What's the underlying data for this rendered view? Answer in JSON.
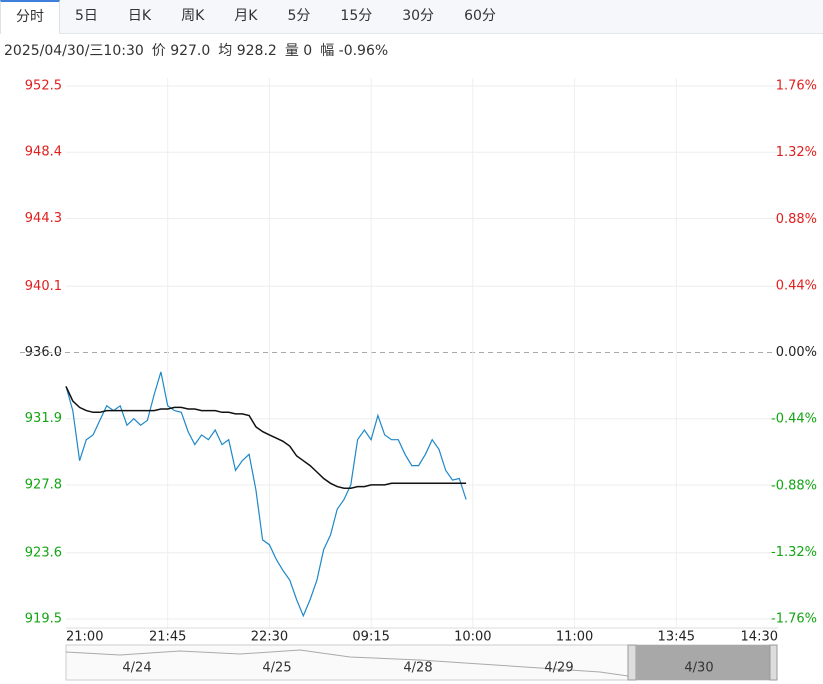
{
  "tabs": [
    "分时",
    "5日",
    "日K",
    "周K",
    "月K",
    "5分",
    "15分",
    "30分",
    "60分"
  ],
  "info": [
    "2025/04/30/三10:30",
    "价 927.0",
    "均 928.2",
    "量 0",
    "幅 -0.96%"
  ],
  "chart_data": {
    "type": "line",
    "x": [
      0,
      3,
      6,
      9,
      12,
      15,
      18,
      21,
      24,
      27,
      30,
      33,
      36,
      39,
      42,
      45,
      48,
      51,
      54,
      57,
      60,
      63,
      66,
      69,
      72,
      75,
      78,
      81,
      84,
      87,
      90,
      93,
      96,
      99,
      102,
      105,
      108,
      111,
      114,
      117,
      120,
      123,
      126,
      129,
      132,
      135,
      138,
      141,
      144,
      147,
      150,
      153,
      156,
      159,
      162,
      165,
      168,
      171,
      174,
      177
    ],
    "series": [
      {
        "name": "价",
        "color": "#1e88c8",
        "values": [
          933.9,
          932.4,
          929.3,
          930.6,
          930.9,
          931.8,
          932.7,
          932.4,
          932.7,
          931.5,
          931.9,
          931.5,
          931.8,
          933.4,
          934.8,
          932.7,
          932.4,
          932.3,
          931.1,
          930.3,
          930.9,
          930.6,
          931.2,
          930.3,
          930.6,
          928.7,
          929.3,
          929.7,
          927.5,
          924.4,
          924.1,
          923.2,
          922.5,
          921.9,
          920.7,
          919.7,
          920.7,
          921.9,
          923.8,
          924.7,
          926.3,
          926.9,
          927.8,
          930.6,
          931.2,
          930.6,
          932.1,
          930.9,
          930.6,
          930.6,
          929.7,
          929.0,
          929.0,
          929.7,
          930.6,
          930.0,
          928.7,
          928.1,
          928.2,
          926.9
        ]
      },
      {
        "name": "均",
        "color": "#111111",
        "values": [
          933.9,
          933.0,
          932.6,
          932.4,
          932.3,
          932.3,
          932.4,
          932.4,
          932.4,
          932.4,
          932.4,
          932.4,
          932.4,
          932.4,
          932.5,
          932.5,
          932.6,
          932.6,
          932.5,
          932.5,
          932.4,
          932.4,
          932.4,
          932.3,
          932.3,
          932.2,
          932.2,
          932.1,
          931.4,
          931.1,
          930.9,
          930.7,
          930.5,
          930.2,
          929.6,
          929.3,
          929.0,
          928.6,
          928.2,
          927.9,
          927.7,
          927.6,
          927.6,
          927.7,
          927.7,
          927.8,
          927.8,
          927.8,
          927.9,
          927.9,
          927.9,
          927.9,
          927.9,
          927.9,
          927.9,
          927.9,
          927.9,
          927.9,
          927.9,
          927.9
        ]
      }
    ],
    "xlim": [
      0,
      315
    ],
    "xticks": [
      {
        "value": 0,
        "label": "21:00"
      },
      {
        "value": 45,
        "label": "21:45"
      },
      {
        "value": 90,
        "label": "22:30"
      },
      {
        "value": 135,
        "label": "09:15"
      },
      {
        "value": 180,
        "label": "10:00"
      },
      {
        "value": 225,
        "label": "11:00"
      },
      {
        "value": 270,
        "label": "13:45"
      },
      {
        "value": 315,
        "label": "14:30"
      }
    ],
    "ylim": [
      919.5,
      952.5
    ],
    "yticks": [
      952.5,
      948.4,
      944.3,
      940.1,
      {
        "value": 936,
        "label": "936.0"
      },
      931.9,
      927.8,
      923.6,
      919.5
    ],
    "y2lim": [
      -1.76,
      1.76
    ],
    "y2ticks": [
      {
        "value": 1.76,
        "label": "1.76%"
      },
      {
        "value": 1.32,
        "label": "1.32%"
      },
      {
        "value": 0.88,
        "label": "0.88%"
      },
      {
        "value": 0.44,
        "label": "0.44%"
      },
      {
        "value": 0,
        "label": "0.00%"
      },
      {
        "value": -0.44,
        "label": "-0.44%"
      },
      {
        "value": -0.88,
        "label": "-0.88%"
      },
      {
        "value": -1.32,
        "label": "-1.32%"
      },
      {
        "value": -1.76,
        "label": "-1.76%"
      }
    ],
    "up_color": "#e0201f",
    "down_color": "#14a514",
    "grid": true,
    "navigator": [
      "4/24",
      "4/25",
      "4/28",
      "4/29",
      "4/30"
    ]
  }
}
